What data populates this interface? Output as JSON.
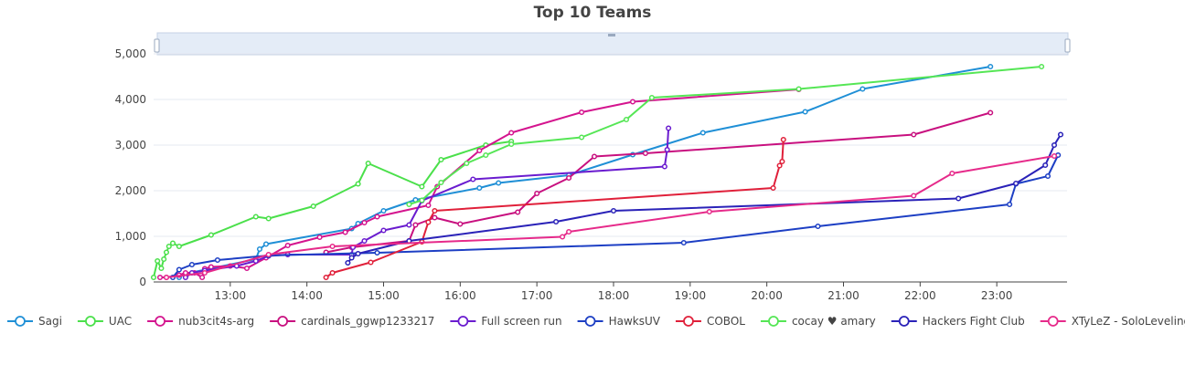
{
  "chart_data": {
    "type": "line",
    "title": "Top 10 Teams",
    "xlabel": "",
    "ylabel": "",
    "x_ticks": [
      "13:00",
      "14:00",
      "15:00",
      "16:00",
      "17:00",
      "18:00",
      "19:00",
      "20:00",
      "21:00",
      "22:00",
      "23:00"
    ],
    "y_ticks": [
      "0",
      "1,000",
      "2,000",
      "3,000",
      "4,000",
      "5,000"
    ],
    "xlim": [
      "12:00",
      "23:55"
    ],
    "ylim": [
      0,
      5000
    ],
    "grid": true,
    "legend_position": "bottom",
    "range_slider": true,
    "series": [
      {
        "name": "Sagi",
        "color": "#1f8fd6",
        "points": [
          [
            "12:20",
            100
          ],
          [
            "12:25",
            180
          ],
          [
            "13:20",
            500
          ],
          [
            "13:23",
            720
          ],
          [
            "13:28",
            830
          ],
          [
            "14:35",
            1170
          ],
          [
            "14:40",
            1280
          ],
          [
            "15:00",
            1560
          ],
          [
            "15:25",
            1800
          ],
          [
            "16:15",
            2060
          ],
          [
            "16:30",
            2170
          ],
          [
            "17:25",
            2340
          ],
          [
            "18:15",
            2790
          ],
          [
            "19:10",
            3270
          ],
          [
            "20:30",
            3730
          ],
          [
            "21:15",
            4230
          ],
          [
            "22:55",
            4720
          ]
        ]
      },
      {
        "name": "UAC",
        "color": "#4be04b",
        "points": [
          [
            "12:00",
            100
          ],
          [
            "12:03",
            460
          ],
          [
            "12:06",
            300
          ],
          [
            "12:08",
            500
          ],
          [
            "12:10",
            650
          ],
          [
            "12:12",
            780
          ],
          [
            "12:15",
            850
          ],
          [
            "12:20",
            780
          ],
          [
            "12:45",
            1030
          ],
          [
            "13:20",
            1430
          ],
          [
            "13:30",
            1390
          ],
          [
            "14:05",
            1660
          ],
          [
            "14:40",
            2150
          ],
          [
            "14:48",
            2600
          ],
          [
            "15:30",
            2090
          ],
          [
            "15:45",
            2680
          ],
          [
            "16:20",
            3000
          ],
          [
            "16:40",
            3080
          ]
        ]
      },
      {
        "name": "nub3cit4s-arg",
        "color": "#d4148e",
        "points": [
          [
            "12:05",
            100
          ],
          [
            "12:10",
            100
          ],
          [
            "12:20",
            150
          ],
          [
            "12:25",
            200
          ],
          [
            "12:32",
            200
          ],
          [
            "12:38",
            100
          ],
          [
            "12:40",
            290
          ],
          [
            "12:45",
            330
          ],
          [
            "13:00",
            350
          ],
          [
            "13:13",
            300
          ],
          [
            "13:28",
            530
          ],
          [
            "13:45",
            800
          ],
          [
            "14:10",
            980
          ],
          [
            "14:30",
            1090
          ],
          [
            "14:45",
            1300
          ],
          [
            "14:55",
            1430
          ],
          [
            "15:35",
            1680
          ],
          [
            "15:42",
            2090
          ],
          [
            "16:15",
            2880
          ],
          [
            "16:40",
            3270
          ],
          [
            "17:35",
            3720
          ],
          [
            "18:15",
            3950
          ],
          [
            "20:25",
            4220
          ]
        ]
      },
      {
        "name": "cardinals_ggwp1233217",
        "color": "#c8107f",
        "points": [
          [
            "14:15",
            650
          ],
          [
            "14:35",
            760
          ],
          [
            "15:20",
            900
          ],
          [
            "15:25",
            1250
          ],
          [
            "15:40",
            1410
          ],
          [
            "16:00",
            1270
          ],
          [
            "16:45",
            1530
          ],
          [
            "17:00",
            1940
          ],
          [
            "17:25",
            2280
          ],
          [
            "17:45",
            2750
          ],
          [
            "18:25",
            2820
          ],
          [
            "21:55",
            3230
          ],
          [
            "22:55",
            3710
          ]
        ]
      },
      {
        "name": "Full screen run",
        "color": "#6a1ccf",
        "points": [
          [
            "12:25",
            100
          ],
          [
            "12:30",
            200
          ],
          [
            "12:40",
            250
          ],
          [
            "13:05",
            350
          ],
          [
            "13:20",
            460
          ],
          [
            "13:30",
            570
          ],
          [
            "13:45",
            600
          ],
          [
            "14:35",
            600
          ],
          [
            "14:36",
            760
          ],
          [
            "14:45",
            900
          ],
          [
            "15:00",
            1130
          ],
          [
            "15:20",
            1250
          ],
          [
            "15:30",
            1780
          ],
          [
            "16:10",
            2250
          ],
          [
            "18:40",
            2530
          ],
          [
            "18:42",
            2900
          ],
          [
            "18:43",
            3370
          ]
        ]
      },
      {
        "name": "HawksUV",
        "color": "#1d3fc4",
        "points": [
          [
            "12:15",
            100
          ],
          [
            "12:20",
            270
          ],
          [
            "12:30",
            380
          ],
          [
            "12:50",
            480
          ],
          [
            "13:30",
            580
          ],
          [
            "14:55",
            640
          ],
          [
            "18:55",
            860
          ],
          [
            "20:40",
            1220
          ],
          [
            "23:10",
            1700
          ],
          [
            "23:15",
            2150
          ],
          [
            "23:40",
            2320
          ],
          [
            "23:48",
            2780
          ]
        ]
      },
      {
        "name": "COBOL",
        "color": "#e0203a",
        "points": [
          [
            "14:15",
            100
          ],
          [
            "14:20",
            200
          ],
          [
            "14:50",
            430
          ],
          [
            "15:30",
            880
          ],
          [
            "15:35",
            1310
          ],
          [
            "15:40",
            1560
          ],
          [
            "20:05",
            2060
          ],
          [
            "20:10",
            2550
          ],
          [
            "20:12",
            2640
          ],
          [
            "20:13",
            3120
          ]
        ]
      },
      {
        "name": "cocay ♥ amary",
        "color": "#55e655",
        "points": [
          [
            "15:20",
            1700
          ],
          [
            "15:30",
            1790
          ],
          [
            "15:45",
            2180
          ],
          [
            "16:05",
            2600
          ],
          [
            "16:20",
            2780
          ],
          [
            "16:40",
            3020
          ],
          [
            "17:35",
            3170
          ],
          [
            "18:10",
            3560
          ],
          [
            "18:30",
            4040
          ],
          [
            "20:25",
            4230
          ],
          [
            "23:35",
            4720
          ]
        ]
      },
      {
        "name": "Hackers Fight Club",
        "color": "#2a22b8",
        "points": [
          [
            "14:32",
            420
          ],
          [
            "14:35",
            530
          ],
          [
            "14:40",
            620
          ],
          [
            "15:20",
            900
          ],
          [
            "17:15",
            1320
          ],
          [
            "18:00",
            1560
          ],
          [
            "22:30",
            1830
          ],
          [
            "23:15",
            2160
          ],
          [
            "23:38",
            2560
          ],
          [
            "23:45",
            3000
          ],
          [
            "23:50",
            3230
          ]
        ]
      },
      {
        "name": "XTyLeZ - SoloLeveling",
        "color": "#e62a8a",
        "points": [
          [
            "12:10",
            100
          ],
          [
            "12:40",
            200
          ],
          [
            "13:30",
            600
          ],
          [
            "14:20",
            780
          ],
          [
            "17:20",
            990
          ],
          [
            "17:25",
            1100
          ],
          [
            "19:15",
            1540
          ],
          [
            "21:55",
            1890
          ],
          [
            "22:25",
            2380
          ],
          [
            "23:45",
            2760
          ]
        ]
      }
    ]
  }
}
